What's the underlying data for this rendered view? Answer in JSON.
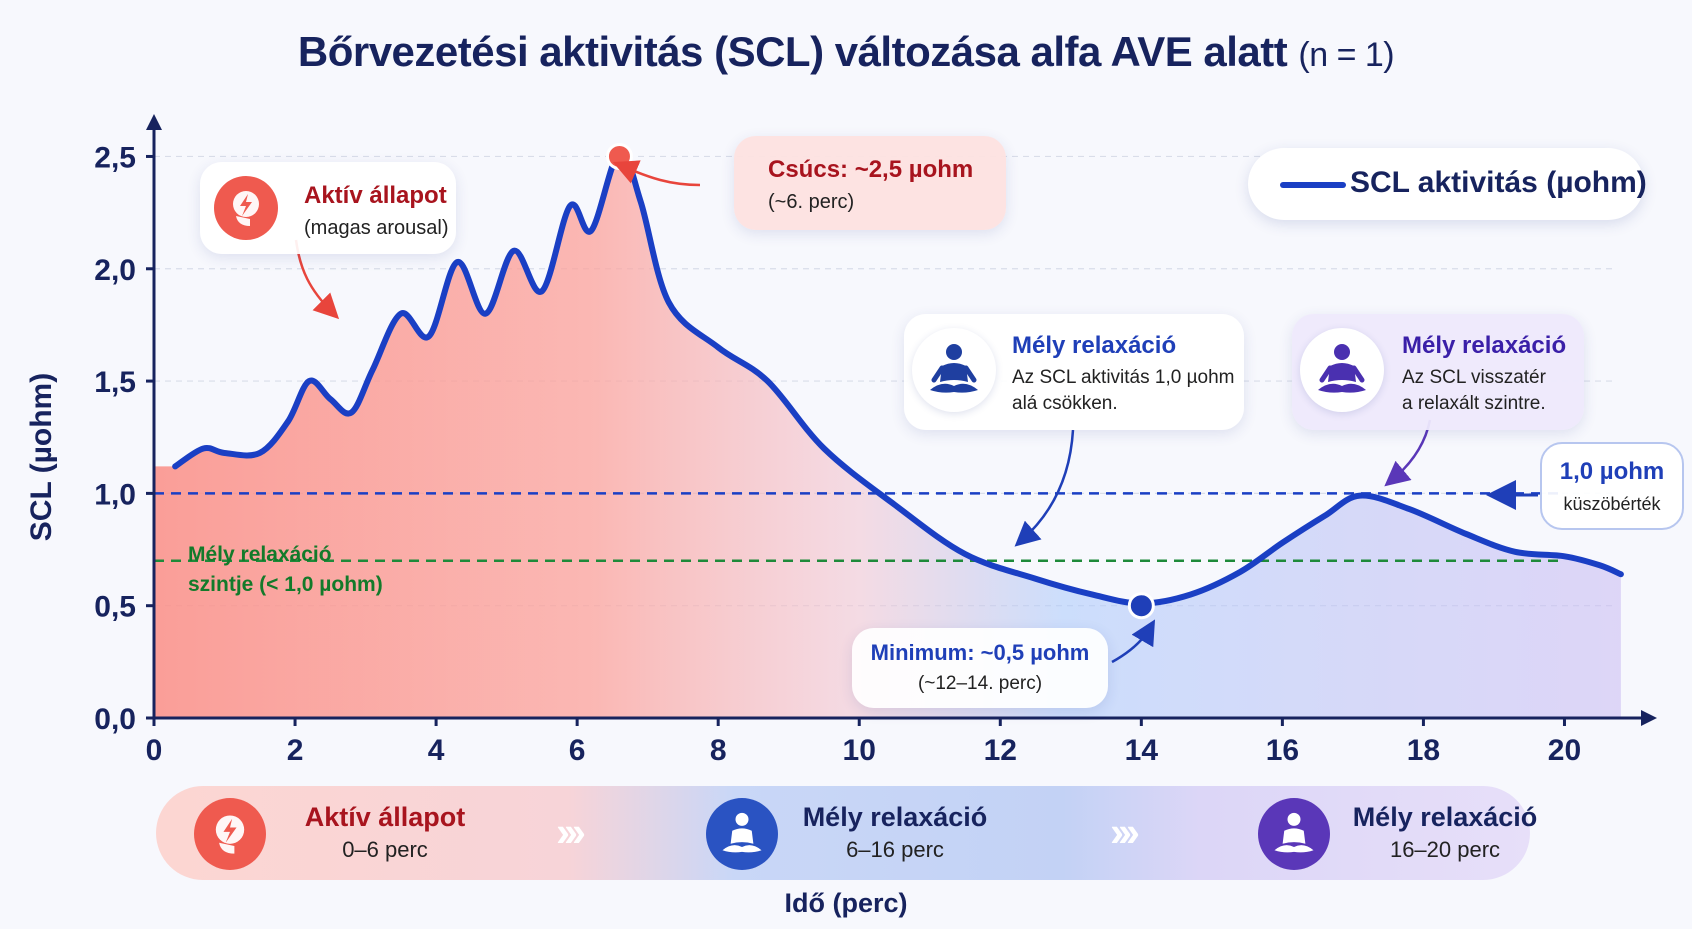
{
  "title": "Bőrvezetési aktivitás (SCL) változása alfa AVE alatt",
  "title_n": "(n = 1)",
  "legend_label": "SCL aktivitás (µohm)",
  "ref_threshold": {
    "value": 1.0,
    "label_value": "1,0 µohm",
    "label_text": "küszöbérték"
  },
  "ref_deep": {
    "value": 0.7,
    "label_line1": "Mély relaxáció",
    "label_line2": "szintje (< 1,0 µohm)"
  },
  "annotations": {
    "active": {
      "title": "Aktív állapot",
      "text": "(magas arousal)"
    },
    "peak": {
      "title": "Csúcs: ~2,5 µohm",
      "text": "(~6. perc)"
    },
    "min": {
      "title": "Minimum: ~0,5 µohm",
      "text": "(~12–14. perc)"
    },
    "deep1": {
      "title": "Mély relaxáció",
      "text1": "Az SCL aktivitás 1,0 µohm",
      "text2": "alá csökken."
    },
    "deep2": {
      "title": "Mély relaxáció",
      "text1": "Az SCL visszatér",
      "text2": "a relaxált szintre."
    }
  },
  "phases": [
    {
      "name": "Aktív állapot",
      "range": "0–6 perc"
    },
    {
      "name": "Mély relaxáció",
      "range": "6–16 perc"
    },
    {
      "name": "Mély relaxáció",
      "range": "16–20 perc"
    }
  ],
  "colors": {
    "line": "#1a3fc4",
    "active": "#e8453c",
    "deep": "#1f4fb8",
    "deep2": "#5a37b8",
    "threshold": "#1a3fc4",
    "deepref": "#1e8a3a"
  },
  "chart_data": {
    "type": "area",
    "title": "Bőrvezetési aktivitás (SCL) változása alfa AVE alatt",
    "xlabel": "Idő (perc)",
    "ylabel": "SCL (µohm)",
    "xlim": [
      0,
      21
    ],
    "ylim": [
      0,
      2.6
    ],
    "xticks": [
      0,
      2,
      4,
      6,
      8,
      10,
      12,
      14,
      16,
      18,
      20
    ],
    "xtick_labels": [
      "0",
      "2",
      "4",
      "6",
      "8",
      "10",
      "12",
      "14",
      "16",
      "18",
      "20"
    ],
    "yticks": [
      0,
      0.5,
      1.0,
      1.5,
      2.0,
      2.5
    ],
    "ytick_labels": [
      "0,0",
      "0,5",
      "1,0",
      "1,5",
      "2,0",
      "2,5"
    ],
    "grid": true,
    "legend": "top-right",
    "series": [
      {
        "name": "SCL aktivitás (µohm)",
        "x": [
          0.3,
          0.7,
          1.0,
          1.5,
          1.9,
          2.2,
          2.5,
          2.8,
          3.1,
          3.5,
          3.9,
          4.3,
          4.7,
          5.1,
          5.5,
          5.9,
          6.2,
          6.6,
          6.9,
          7.3,
          8.0,
          8.7,
          9.5,
          10.5,
          11.5,
          12.5,
          13.3,
          14.0,
          14.7,
          15.4,
          16.0,
          16.6,
          17.1,
          17.8,
          18.6,
          19.3,
          20.0,
          20.5,
          20.8
        ],
        "y": [
          1.12,
          1.2,
          1.18,
          1.18,
          1.32,
          1.5,
          1.42,
          1.36,
          1.55,
          1.8,
          1.7,
          2.03,
          1.8,
          2.08,
          1.9,
          2.28,
          2.17,
          2.52,
          2.3,
          1.85,
          1.65,
          1.5,
          1.2,
          0.95,
          0.73,
          0.62,
          0.55,
          0.51,
          0.55,
          0.65,
          0.78,
          0.9,
          0.99,
          0.93,
          0.82,
          0.74,
          0.72,
          0.68,
          0.64
        ]
      }
    ],
    "annotations": [
      {
        "x": 6.6,
        "y": 2.5,
        "label": "Csúcs: ~2,5 µohm"
      },
      {
        "x": 14.0,
        "y": 0.5,
        "label": "Minimum: ~0,5 µohm"
      }
    ]
  }
}
